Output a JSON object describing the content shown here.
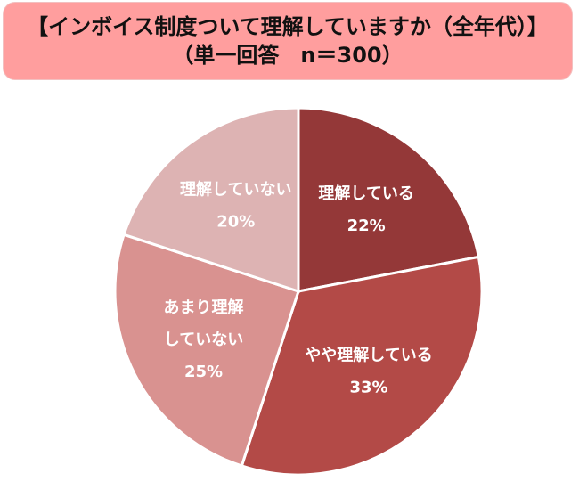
{
  "chart_data": {
    "type": "pie",
    "title": [
      "【インボイス制度ついて理解していますか（全年代）】",
      "（単一回答　n＝300）"
    ],
    "start": "top",
    "direction": "clockwise",
    "slices": [
      {
        "label": [
          "理解している"
        ],
        "value": 22,
        "value_label": "22%",
        "color": "#943838"
      },
      {
        "label": [
          "やや理解している"
        ],
        "value": 33,
        "value_label": "33%",
        "color": "#B34A47"
      },
      {
        "label": [
          "あまり理解",
          "していない"
        ],
        "value": 25,
        "value_label": "25%",
        "color": "#D99290"
      },
      {
        "label": [
          "理解していない"
        ],
        "value": 20,
        "value_label": "20%",
        "color": "#DDB3B3"
      }
    ]
  }
}
